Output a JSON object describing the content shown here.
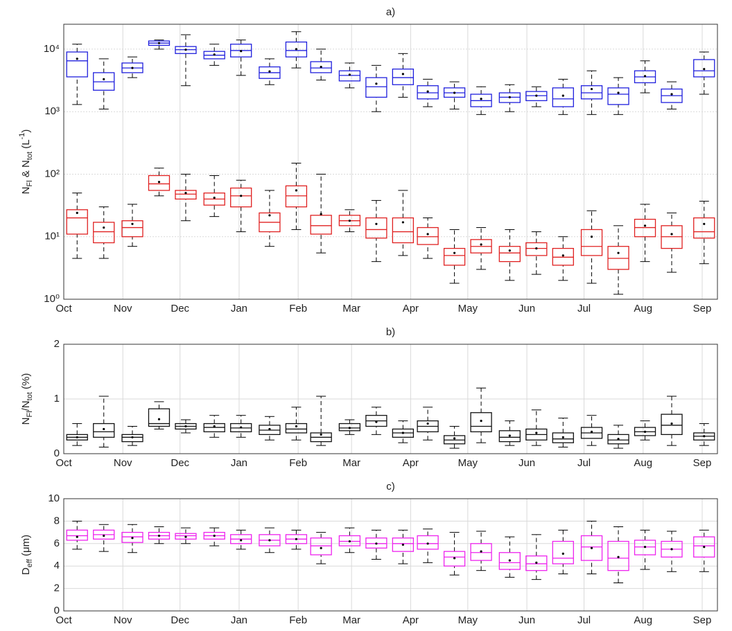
{
  "chart_data": [
    {
      "type": "box",
      "title": "a)",
      "log": true,
      "grid": true,
      "ylabel": [
        {
          "t": "N"
        },
        {
          "t": "Fl",
          "s": "sub"
        },
        {
          "t": " & N"
        },
        {
          "t": "tot",
          "s": "sub"
        },
        {
          "t": " (L"
        },
        {
          "t": "-1",
          "s": "super"
        },
        {
          "t": ")"
        }
      ],
      "xlim": [
        0,
        343
      ],
      "xticks": [
        {
          "value": 0,
          "label": "Oct"
        },
        {
          "value": 31,
          "label": "Nov"
        },
        {
          "value": 61,
          "label": "Dec"
        },
        {
          "value": 92,
          "label": "Jan"
        },
        {
          "value": 123,
          "label": "Feb"
        },
        {
          "value": 151,
          "label": "Mar"
        },
        {
          "value": 182,
          "label": "Apr"
        },
        {
          "value": 212,
          "label": "May"
        },
        {
          "value": 243,
          "label": "Jun"
        },
        {
          "value": 273,
          "label": "Jul"
        },
        {
          "value": 304,
          "label": "Aug"
        },
        {
          "value": 335,
          "label": "Sep"
        }
      ],
      "ylim": [
        1,
        25000
      ],
      "yticks": [
        {
          "value": 1,
          "label": "10⁰"
        },
        {
          "value": 10,
          "label": "10¹"
        },
        {
          "value": 100,
          "label": "10²"
        },
        {
          "value": 1000,
          "label": "10³"
        },
        {
          "value": 10000,
          "label": "10⁴"
        }
      ],
      "x": [
        7,
        21,
        36,
        50,
        64,
        79,
        93,
        108,
        122,
        135,
        150,
        164,
        178,
        191,
        205,
        219,
        234,
        248,
        262,
        277,
        291,
        305,
        319,
        336
      ],
      "series": [
        {
          "color": "#1f1fdd",
          "boxes": [
            [
              1300,
              3600,
              6500,
              9000,
              12000,
              7000
            ],
            [
              1100,
              2200,
              3000,
              4200,
              7000,
              3300
            ],
            [
              3500,
              4200,
              5000,
              6000,
              7500,
              5000
            ],
            [
              10000,
              11500,
              12500,
              13500,
              14000,
              12500
            ],
            [
              2600,
              8500,
              9800,
              11000,
              17000,
              9800
            ],
            [
              5500,
              7000,
              8000,
              9200,
              12000,
              8200
            ],
            [
              3800,
              7500,
              9500,
              12000,
              14000,
              9300
            ],
            [
              2700,
              3400,
              4200,
              5200,
              7000,
              4400
            ],
            [
              5000,
              7500,
              9500,
              13000,
              19000,
              10000
            ],
            [
              3200,
              4200,
              5000,
              6300,
              10000,
              5200
            ],
            [
              2400,
              3100,
              3800,
              4500,
              6000,
              3900
            ],
            [
              1000,
              1700,
              2500,
              3500,
              5500,
              2800
            ],
            [
              1700,
              2700,
              3500,
              4800,
              8500,
              4000
            ],
            [
              1200,
              1600,
              2000,
              2600,
              3300,
              2100
            ],
            [
              1100,
              1700,
              2000,
              2400,
              3000,
              2000
            ],
            [
              900,
              1200,
              1500,
              1900,
              2500,
              1600
            ],
            [
              1000,
              1400,
              1700,
              2000,
              2700,
              1700
            ],
            [
              1200,
              1500,
              1800,
              2100,
              2500,
              1800
            ],
            [
              900,
              1200,
              1600,
              2400,
              3300,
              1800
            ],
            [
              900,
              1600,
              2000,
              2600,
              4500,
              2300
            ],
            [
              900,
              1300,
              1900,
              2400,
              3500,
              2000
            ],
            [
              2000,
              2900,
              3600,
              4500,
              6500,
              3700
            ],
            [
              1100,
              1400,
              1800,
              2300,
              3000,
              1900
            ],
            [
              1900,
              3600,
              4500,
              6800,
              9000,
              4800
            ]
          ]
        },
        {
          "color": "#e02020",
          "boxes": [
            [
              4.5,
              11,
              20,
              27,
              50,
              24
            ],
            [
              4.5,
              8,
              12,
              17,
              30,
              14
            ],
            [
              7,
              10,
              14,
              18,
              33,
              16
            ],
            [
              45,
              55,
              70,
              95,
              125,
              75
            ],
            [
              18,
              40,
              48,
              55,
              100,
              50
            ],
            [
              21,
              32,
              40,
              50,
              95,
              42
            ],
            [
              12,
              30,
              45,
              60,
              80,
              45
            ],
            [
              7,
              12,
              17,
              24,
              55,
              22
            ],
            [
              13,
              30,
              45,
              65,
              150,
              55
            ],
            [
              5.5,
              11,
              15,
              22,
              100,
              23
            ],
            [
              12,
              15,
              18,
              22,
              27,
              18
            ],
            [
              4,
              9.5,
              13,
              20,
              38,
              16
            ],
            [
              5,
              8,
              12,
              20,
              55,
              17
            ],
            [
              4.5,
              7.5,
              10,
              14,
              20,
              11
            ],
            [
              1.8,
              3.5,
              5,
              6.5,
              13,
              5.5
            ],
            [
              3,
              5.5,
              7,
              9,
              14,
              7.5
            ],
            [
              2,
              4,
              5.5,
              7,
              13,
              6
            ],
            [
              2.5,
              5,
              6.5,
              8,
              12,
              6.5
            ],
            [
              2,
              3.5,
              4.7,
              6.5,
              10,
              5
            ],
            [
              1.8,
              5,
              7,
              13,
              26,
              10
            ],
            [
              1.2,
              3,
              4.5,
              7,
              15,
              5.5
            ],
            [
              4,
              10,
              14,
              19,
              33,
              15
            ],
            [
              2.7,
              6.5,
              10,
              15,
              24,
              11
            ],
            [
              3.7,
              9.5,
              12,
              20,
              37,
              16
            ]
          ]
        }
      ]
    },
    {
      "type": "box",
      "title": "b)",
      "log": false,
      "grid": true,
      "ylabel": [
        {
          "t": "N"
        },
        {
          "t": "Fl",
          "s": "sub"
        },
        {
          "t": "/N"
        },
        {
          "t": "tot",
          "s": "sub"
        },
        {
          "t": " (%)"
        }
      ],
      "xlim": [
        0,
        343
      ],
      "xticks": [
        {
          "value": 0,
          "label": "Oct"
        },
        {
          "value": 31,
          "label": "Nov"
        },
        {
          "value": 61,
          "label": "Dec"
        },
        {
          "value": 92,
          "label": "Jan"
        },
        {
          "value": 123,
          "label": "Feb"
        },
        {
          "value": 151,
          "label": "Mar"
        },
        {
          "value": 182,
          "label": "Apr"
        },
        {
          "value": 212,
          "label": "May"
        },
        {
          "value": 243,
          "label": "Jun"
        },
        {
          "value": 273,
          "label": "Jul"
        },
        {
          "value": 304,
          "label": "Aug"
        },
        {
          "value": 335,
          "label": "Sep"
        }
      ],
      "ylim": [
        0,
        2
      ],
      "yticks": [
        0,
        1,
        2
      ],
      "x": [
        7,
        21,
        36,
        50,
        64,
        79,
        93,
        108,
        122,
        135,
        150,
        164,
        178,
        191,
        205,
        219,
        234,
        248,
        262,
        277,
        291,
        305,
        319,
        336
      ],
      "series": [
        {
          "color": "#111111",
          "boxes": [
            [
              0.15,
              0.25,
              0.3,
              0.35,
              0.55,
              0.3
            ],
            [
              0.12,
              0.3,
              0.4,
              0.55,
              1.05,
              0.45
            ],
            [
              0.15,
              0.22,
              0.3,
              0.35,
              0.5,
              0.3
            ],
            [
              0.45,
              0.5,
              0.55,
              0.82,
              0.95,
              0.63
            ],
            [
              0.38,
              0.45,
              0.5,
              0.55,
              0.62,
              0.5
            ],
            [
              0.3,
              0.4,
              0.48,
              0.55,
              0.7,
              0.5
            ],
            [
              0.3,
              0.4,
              0.47,
              0.55,
              0.7,
              0.48
            ],
            [
              0.25,
              0.35,
              0.43,
              0.52,
              0.68,
              0.45
            ],
            [
              0.25,
              0.38,
              0.45,
              0.55,
              0.85,
              0.5
            ],
            [
              0.15,
              0.22,
              0.3,
              0.38,
              1.05,
              0.35
            ],
            [
              0.35,
              0.42,
              0.47,
              0.55,
              0.62,
              0.47
            ],
            [
              0.35,
              0.5,
              0.6,
              0.7,
              0.85,
              0.58
            ],
            [
              0.2,
              0.3,
              0.38,
              0.45,
              0.6,
              0.38
            ],
            [
              0.25,
              0.4,
              0.5,
              0.6,
              0.85,
              0.55
            ],
            [
              0.1,
              0.18,
              0.25,
              0.33,
              0.5,
              0.28
            ],
            [
              0.2,
              0.4,
              0.5,
              0.75,
              1.2,
              0.6
            ],
            [
              0.15,
              0.22,
              0.3,
              0.42,
              0.6,
              0.33
            ],
            [
              0.15,
              0.25,
              0.35,
              0.45,
              0.8,
              0.38
            ],
            [
              0.12,
              0.2,
              0.27,
              0.38,
              0.65,
              0.3
            ],
            [
              0.15,
              0.28,
              0.38,
              0.48,
              0.7,
              0.4
            ],
            [
              0.1,
              0.18,
              0.25,
              0.35,
              0.52,
              0.27
            ],
            [
              0.25,
              0.33,
              0.4,
              0.48,
              0.6,
              0.4
            ],
            [
              0.15,
              0.35,
              0.52,
              0.72,
              1.05,
              0.55
            ],
            [
              0.15,
              0.25,
              0.32,
              0.38,
              0.55,
              0.32
            ]
          ]
        }
      ]
    },
    {
      "type": "box",
      "title": "c)",
      "log": false,
      "grid": true,
      "ylabel": [
        {
          "t": "D"
        },
        {
          "t": "eff",
          "s": "sub"
        },
        {
          "t": " (μm)"
        }
      ],
      "xlim": [
        0,
        343
      ],
      "xticks": [
        {
          "value": 0,
          "label": "Oct"
        },
        {
          "value": 31,
          "label": "Nov"
        },
        {
          "value": 61,
          "label": "Dec"
        },
        {
          "value": 92,
          "label": "Jan"
        },
        {
          "value": 123,
          "label": "Feb"
        },
        {
          "value": 151,
          "label": "Mar"
        },
        {
          "value": 182,
          "label": "Apr"
        },
        {
          "value": 212,
          "label": "May"
        },
        {
          "value": 243,
          "label": "Jun"
        },
        {
          "value": 273,
          "label": "Jul"
        },
        {
          "value": 304,
          "label": "Aug"
        },
        {
          "value": 335,
          "label": "Sep"
        }
      ],
      "ylim": [
        0,
        10
      ],
      "yticks": [
        0,
        2,
        4,
        6,
        8,
        10
      ],
      "x": [
        7,
        21,
        36,
        50,
        64,
        79,
        93,
        108,
        122,
        135,
        150,
        164,
        178,
        191,
        205,
        219,
        234,
        248,
        262,
        277,
        291,
        305,
        319,
        336
      ],
      "series": [
        {
          "color": "#ee22ee",
          "boxes": [
            [
              5.5,
              6.3,
              6.7,
              7.2,
              8,
              6.6
            ],
            [
              5.3,
              6.4,
              6.8,
              7.2,
              7.7,
              6.7
            ],
            [
              5.2,
              6.1,
              6.6,
              7,
              7.7,
              6.5
            ],
            [
              6,
              6.4,
              6.7,
              7,
              7.5,
              6.7
            ],
            [
              6,
              6.4,
              6.7,
              6.9,
              7.4,
              6.6
            ],
            [
              5.8,
              6.4,
              6.7,
              7,
              7.4,
              6.7
            ],
            [
              5.5,
              6,
              6.4,
              6.8,
              7.2,
              6.3
            ],
            [
              5.2,
              5.8,
              6.3,
              6.8,
              7.4,
              6.3
            ],
            [
              5.5,
              6,
              6.4,
              6.8,
              7.2,
              6.4
            ],
            [
              4.2,
              5,
              5.8,
              6.5,
              7,
              5.6
            ],
            [
              5.2,
              5.8,
              6.2,
              6.7,
              7.4,
              6.2
            ],
            [
              4.6,
              5.6,
              6,
              6.5,
              7.2,
              6
            ],
            [
              4.2,
              5.3,
              6,
              6.5,
              7.2,
              5.9
            ],
            [
              4.3,
              5.5,
              6,
              6.7,
              7.3,
              6
            ],
            [
              3.2,
              4,
              4.8,
              5.3,
              7,
              4.7
            ],
            [
              3.6,
              4.5,
              5.2,
              6,
              7.1,
              5.3
            ],
            [
              3,
              3.7,
              4.3,
              5.2,
              6.6,
              4.5
            ],
            [
              2.8,
              3.6,
              4.2,
              4.9,
              6.8,
              4.3
            ],
            [
              3.3,
              4.2,
              4.7,
              6.2,
              7.2,
              5.1
            ],
            [
              3.3,
              4.5,
              5.7,
              6.7,
              8,
              5.6
            ],
            [
              2.5,
              3.6,
              4.7,
              6.2,
              7.5,
              4.8
            ],
            [
              3.7,
              5,
              5.7,
              6.3,
              7.2,
              5.7
            ],
            [
              3.5,
              4.8,
              5.5,
              6.2,
              7.1,
              5.5
            ],
            [
              3.5,
              4.8,
              5.8,
              6.6,
              7.2,
              5.7
            ]
          ]
        }
      ]
    }
  ]
}
